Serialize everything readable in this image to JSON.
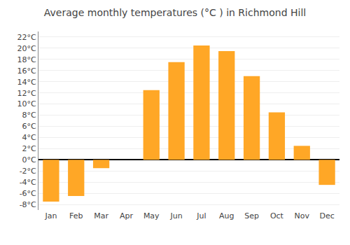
{
  "chart_data": {
    "type": "bar",
    "title": "Average monthly temperatures (°C ) in Richmond Hill",
    "categories": [
      "Jan",
      "Feb",
      "Mar",
      "Apr",
      "May",
      "Jun",
      "Jul",
      "Aug",
      "Sep",
      "Oct",
      "Nov",
      "Dec"
    ],
    "values": [
      -7.5,
      -6.5,
      -1.5,
      0.0,
      12.5,
      17.5,
      20.5,
      19.5,
      15.0,
      8.5,
      2.5,
      -4.5
    ],
    "color": "#FFA726",
    "ylim": [
      -9,
      23
    ],
    "yticks": [
      {
        "value": -8,
        "label": "-8°C"
      },
      {
        "value": -6,
        "label": "-6°C"
      },
      {
        "value": -4,
        "label": "-4°C"
      },
      {
        "value": -2,
        "label": "-2°C"
      },
      {
        "value": 0,
        "label": "0°C"
      },
      {
        "value": 2,
        "label": "2°C"
      },
      {
        "value": 4,
        "label": "4°C"
      },
      {
        "value": 6,
        "label": "6°C"
      },
      {
        "value": 8,
        "label": "8°C"
      },
      {
        "value": 10,
        "label": "10°C"
      },
      {
        "value": 12,
        "label": "12°C"
      },
      {
        "value": 14,
        "label": "14°C"
      },
      {
        "value": 16,
        "label": "16°C"
      },
      {
        "value": 18,
        "label": "18°C"
      },
      {
        "value": 20,
        "label": "20°C"
      },
      {
        "value": 22,
        "label": "22°C"
      }
    ],
    "grid": true
  }
}
